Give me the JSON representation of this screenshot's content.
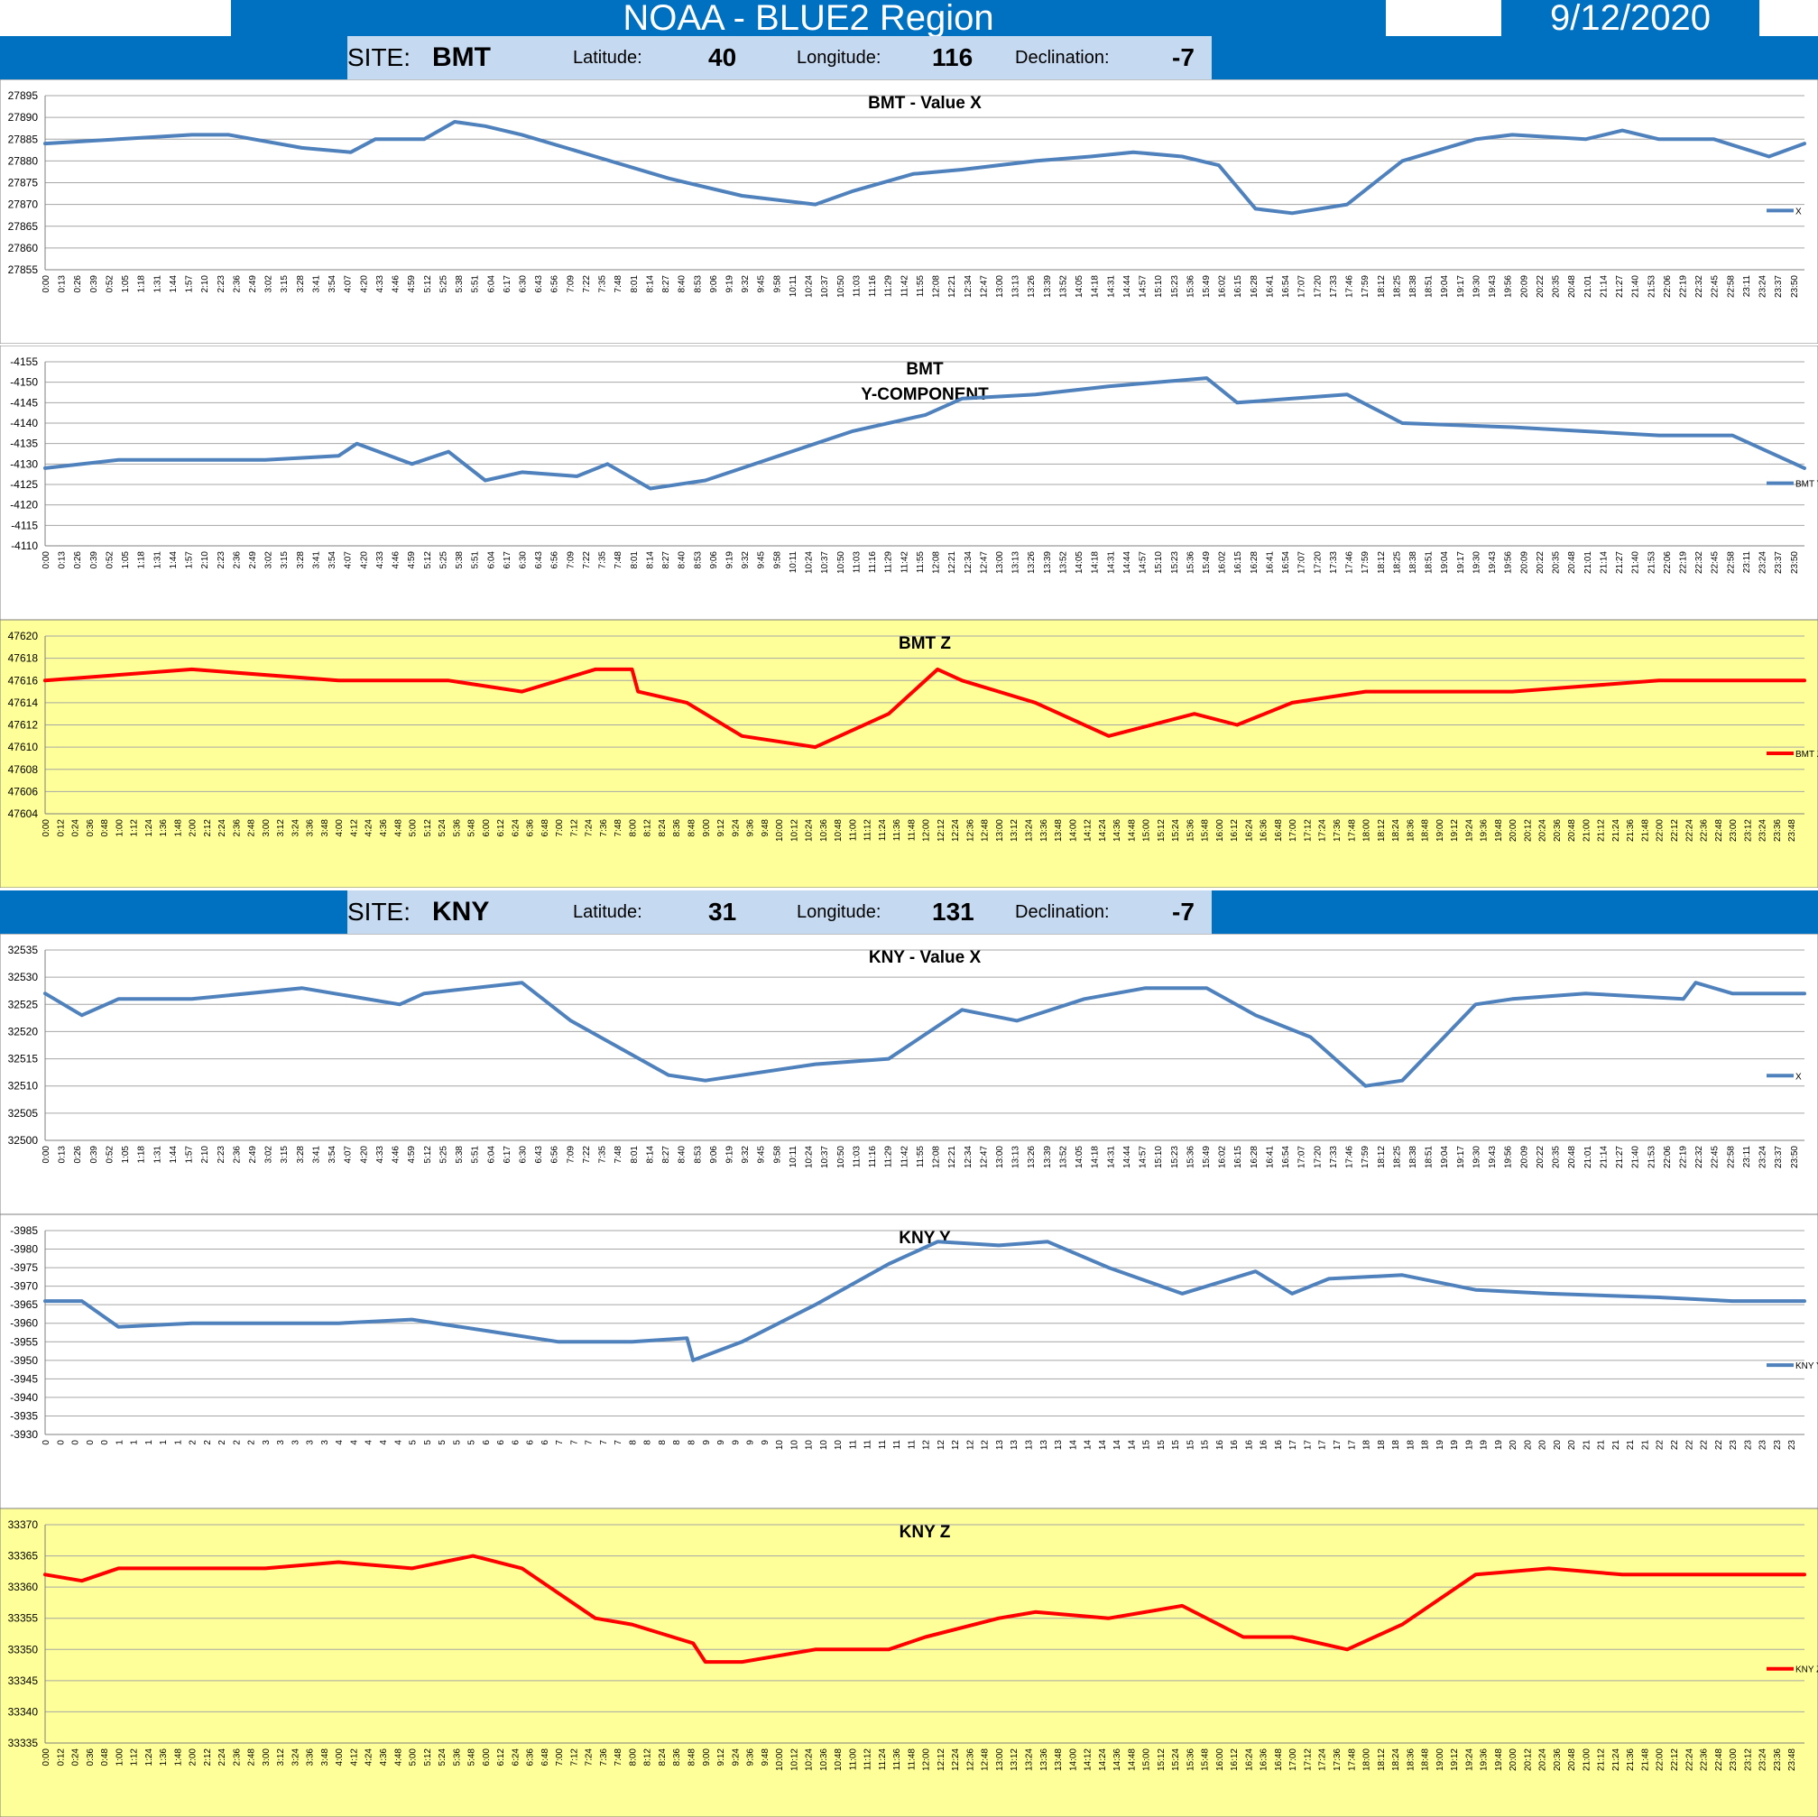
{
  "header": {
    "region_title": "NOAA - BLUE2 Region",
    "date": "9/12/2020",
    "bar_color": "#0070c0"
  },
  "sites": [
    {
      "site_label": "SITE:",
      "site_code": "BMT",
      "latitude_label": "Latitude:",
      "latitude": "40",
      "longitude_label": "Longitude:",
      "longitude": "116",
      "declination_label": "Declination:",
      "declination": "-7"
    },
    {
      "site_label": "SITE:",
      "site_code": "KNY",
      "latitude_label": "Latitude:",
      "latitude": "31",
      "longitude_label": "Longitude:",
      "longitude": "131",
      "declination_label": "Declination:",
      "declination": "-7"
    }
  ],
  "chart_data": [
    {
      "type": "line",
      "title": "BMT - Value X",
      "title_lines": [
        "BMT - Value X"
      ],
      "legend": "X",
      "color": "#4f81bd",
      "background": "#ffffff",
      "ylim": [
        27855,
        27895
      ],
      "ystep": 5,
      "y_reversed": false,
      "x_ticks_start": "0:00",
      "x_ticks_step_min": 13,
      "series": [
        {
          "name": "X",
          "x": [
            "0:00",
            "1:00",
            "2:00",
            "2:30",
            "3:30",
            "4:10",
            "4:30",
            "5:10",
            "5:35",
            "6:00",
            "6:30",
            "7:30",
            "8:30",
            "9:30",
            "10:30",
            "11:00",
            "11:50",
            "12:30",
            "13:30",
            "14:15",
            "14:50",
            "15:30",
            "16:00",
            "16:30",
            "17:00",
            "17:45",
            "18:30",
            "19:30",
            "20:00",
            "21:00",
            "21:30",
            "22:00",
            "22:45",
            "23:30",
            "23:59"
          ],
          "values": [
            27884,
            27885,
            27886,
            27886,
            27883,
            27882,
            27885,
            27885,
            27889,
            27888,
            27886,
            27881,
            27876,
            27872,
            27870,
            27873,
            27877,
            27878,
            27880,
            27881,
            27882,
            27881,
            27879,
            27869,
            27868,
            27870,
            27880,
            27885,
            27886,
            27885,
            27887,
            27885,
            27885,
            27881,
            27884
          ]
        }
      ]
    },
    {
      "type": "line",
      "title": "BMT Y-COMPONENT",
      "title_lines": [
        "BMT",
        "Y-COMPONENT"
      ],
      "legend": "BMT Y",
      "color": "#4f81bd",
      "background": "#ffffff",
      "ylim": [
        -4155,
        -4110
      ],
      "ystep": 5,
      "y_reversed": true,
      "x_ticks_start": "0:00",
      "x_ticks_step_min": 13,
      "series": [
        {
          "name": "BMT Y",
          "x": [
            "0:00",
            "1:00",
            "2:00",
            "3:00",
            "4:00",
            "4:15",
            "5:00",
            "5:30",
            "6:00",
            "6:30",
            "7:15",
            "7:40",
            "8:15",
            "9:00",
            "10:00",
            "11:00",
            "12:00",
            "12:30",
            "13:30",
            "14:30",
            "15:50",
            "16:15",
            "17:00",
            "17:45",
            "18:30",
            "20:00",
            "22:00",
            "23:00",
            "23:59"
          ],
          "values": [
            -4129,
            -4131,
            -4131,
            -4131,
            -4132,
            -4135,
            -4130,
            -4133,
            -4126,
            -4128,
            -4127,
            -4130,
            -4124,
            -4126,
            -4132,
            -4138,
            -4142,
            -4146,
            -4147,
            -4149,
            -4151,
            -4145,
            -4146,
            -4147,
            -4140,
            -4139,
            -4137,
            -4137,
            -4129
          ]
        }
      ]
    },
    {
      "type": "line",
      "title": "BMT Z",
      "title_lines": [
        "BMT Z"
      ],
      "legend": "BMT Z",
      "color": "#ff0000",
      "background": "#ffff99",
      "ylim": [
        47604,
        47620
      ],
      "ystep": 2,
      "y_reversed": false,
      "x_ticks_start": "0:00",
      "x_ticks_step_min": 12,
      "series": [
        {
          "name": "BMT Z",
          "x": [
            "0:00",
            "2:00",
            "4:00",
            "5:30",
            "6:30",
            "7:00",
            "7:30",
            "8:00",
            "8:05",
            "8:45",
            "9:30",
            "10:30",
            "11:30",
            "12:10",
            "12:30",
            "13:30",
            "14:30",
            "15:40",
            "16:15",
            "17:00",
            "18:00",
            "20:00",
            "22:00",
            "23:00",
            "23:59"
          ],
          "values": [
            47616,
            47617,
            47616,
            47616,
            47615,
            47616,
            47617,
            47617,
            47615,
            47614,
            47611,
            47610,
            47613,
            47617,
            47616,
            47614,
            47611,
            47613,
            47612,
            47614,
            47615,
            47615,
            47616,
            47616,
            47616
          ]
        }
      ]
    },
    {
      "type": "line",
      "title": "KNY - Value X",
      "title_lines": [
        "KNY - Value X"
      ],
      "legend": "X",
      "color": "#4f81bd",
      "background": "#ffffff",
      "ylim": [
        32500,
        32535
      ],
      "ystep": 5,
      "y_reversed": false,
      "x_ticks_start": "0:00",
      "x_ticks_step_min": 13,
      "series": [
        {
          "name": "X",
          "x": [
            "0:00",
            "0:30",
            "1:00",
            "2:00",
            "3:30",
            "4:50",
            "5:10",
            "6:30",
            "7:10",
            "8:30",
            "9:00",
            "10:30",
            "11:30",
            "12:30",
            "13:15",
            "14:10",
            "15:00",
            "15:50",
            "16:30",
            "17:15",
            "18:00",
            "18:30",
            "19:30",
            "20:00",
            "21:00",
            "22:20",
            "22:30",
            "23:00",
            "23:59"
          ],
          "values": [
            32527,
            32523,
            32526,
            32526,
            32528,
            32525,
            32527,
            32529,
            32522,
            32512,
            32511,
            32514,
            32515,
            32524,
            32522,
            32526,
            32528,
            32528,
            32523,
            32519,
            32510,
            32511,
            32525,
            32526,
            32527,
            32526,
            32529,
            32527,
            32527
          ]
        }
      ]
    },
    {
      "type": "line",
      "title": "KNY Y",
      "title_lines": [
        "KNY Y"
      ],
      "legend": "KNY Y",
      "color": "#4f81bd",
      "background": "#ffffff",
      "ylim": [
        -3985,
        -3930
      ],
      "ystep": 5,
      "y_reversed": true,
      "x_ticks_start": "0",
      "x_ticks_step_min": 12,
      "x_ticks_hour_only": true,
      "series": [
        {
          "name": "KNY Y",
          "x": [
            "0:00",
            "0:30",
            "1:00",
            "2:00",
            "3:00",
            "4:00",
            "5:00",
            "6:00",
            "7:00",
            "8:00",
            "8:45",
            "8:50",
            "9:30",
            "10:30",
            "11:30",
            "12:10",
            "13:00",
            "13:40",
            "14:30",
            "15:30",
            "16:30",
            "17:00",
            "17:30",
            "18:30",
            "19:30",
            "20:30",
            "22:00",
            "23:00",
            "23:59"
          ],
          "values": [
            -3966,
            -3966,
            -3959,
            -3960,
            -3960,
            -3960,
            -3961,
            -3958,
            -3955,
            -3955,
            -3956,
            -3950,
            -3955,
            -3965,
            -3976,
            -3982,
            -3981,
            -3982,
            -3975,
            -3968,
            -3974,
            -3968,
            -3972,
            -3973,
            -3969,
            -3968,
            -3967,
            -3966,
            -3966
          ]
        }
      ]
    },
    {
      "type": "line",
      "title": "KNY Z",
      "title_lines": [
        "KNY Z"
      ],
      "legend": "KNY Z",
      "color": "#ff0000",
      "background": "#ffff99",
      "ylim": [
        33335,
        33370
      ],
      "ystep": 5,
      "y_reversed": false,
      "x_ticks_start": "0:00",
      "x_ticks_step_min": 12,
      "series": [
        {
          "name": "KNY Z",
          "x": [
            "0:00",
            "0:30",
            "1:00",
            "2:00",
            "3:00",
            "4:00",
            "5:00",
            "5:50",
            "6:30",
            "7:30",
            "8:00",
            "8:50",
            "9:00",
            "9:30",
            "10:30",
            "11:30",
            "12:00",
            "13:00",
            "13:30",
            "14:30",
            "15:30",
            "16:20",
            "17:00",
            "17:45",
            "18:30",
            "19:30",
            "20:30",
            "21:30",
            "22:30",
            "23:00",
            "23:59"
          ],
          "values": [
            33362,
            33361,
            33363,
            33363,
            33363,
            33364,
            33363,
            33365,
            33363,
            33355,
            33354,
            33351,
            33348,
            33348,
            33350,
            33350,
            33352,
            33355,
            33356,
            33355,
            33357,
            33352,
            33352,
            33350,
            33354,
            33362,
            33363,
            33362,
            33362,
            33362,
            33362
          ]
        }
      ]
    }
  ]
}
